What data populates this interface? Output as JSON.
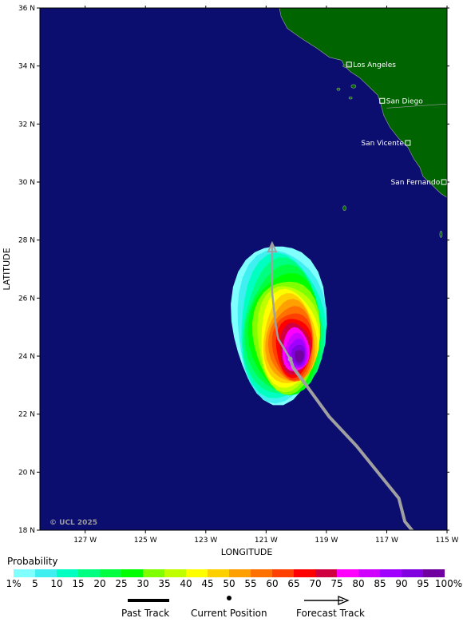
{
  "map": {
    "axes": {
      "xlabel": "LONGITUDE",
      "ylabel": "LATITUDE",
      "x_ticks": [
        "127 W",
        "125 W",
        "123 W",
        "121 W",
        "119 W",
        "117 W",
        "115 W"
      ],
      "y_ticks": [
        "18 N",
        "20 N",
        "22 N",
        "24 N",
        "26 N",
        "28 N",
        "30 N",
        "32 N",
        "34 N",
        "36 N"
      ],
      "lon_range": [
        -128.5,
        -115
      ],
      "lat_range": [
        18,
        36
      ]
    },
    "colors": {
      "ocean": "#0b0e6e",
      "land": "#006400",
      "track": "#a0a0a0",
      "city_marker": "#ffffff"
    },
    "cities": [
      {
        "name": "Los Angeles",
        "lon": -118.25,
        "lat": 34.05
      },
      {
        "name": "San Diego",
        "lon": -117.15,
        "lat": 32.8
      },
      {
        "name": "San Vicente",
        "lon": -116.3,
        "lat": 31.35
      },
      {
        "name": "San Fernando",
        "lon": -115.1,
        "lat": 30.0
      }
    ],
    "past_track": [
      {
        "lon": -116.0,
        "lat": 17.8
      },
      {
        "lon": -116.4,
        "lat": 18.3
      },
      {
        "lon": -116.6,
        "lat": 19.1
      },
      {
        "lon": -118.0,
        "lat": 20.9
      },
      {
        "lon": -118.9,
        "lat": 21.9
      },
      {
        "lon": -119.6,
        "lat": 22.9
      },
      {
        "lon": -120.1,
        "lat": 23.6
      },
      {
        "lon": -120.2,
        "lat": 23.9
      }
    ],
    "forecast_track": [
      {
        "lon": -120.2,
        "lat": 23.9
      },
      {
        "lon": -120.6,
        "lat": 24.6
      },
      {
        "lon": -120.7,
        "lat": 25.2
      },
      {
        "lon": -120.8,
        "lat": 26.2
      },
      {
        "lon": -120.8,
        "lat": 27.9
      }
    ],
    "current_position": {
      "lon": -120.2,
      "lat": 23.9
    },
    "probability_peak": {
      "lon": -119.9,
      "lat": 24.0
    },
    "copyright": "© UCL 2025"
  },
  "legend": {
    "title": "Probability",
    "labels": [
      "1%",
      "5",
      "10",
      "15",
      "20",
      "25",
      "30",
      "35",
      "40",
      "45",
      "50",
      "55",
      "60",
      "65",
      "70",
      "75",
      "80",
      "85",
      "90",
      "95",
      "100%"
    ],
    "colors": [
      "#80ffff",
      "#40f0f0",
      "#00ffc0",
      "#00ff80",
      "#00ff40",
      "#00ff00",
      "#80ff00",
      "#c0ff00",
      "#ffff00",
      "#ffd000",
      "#ffa000",
      "#ff7000",
      "#ff4000",
      "#ff0000",
      "#d00040",
      "#ff00ff",
      "#d000ff",
      "#a000ff",
      "#8000e0",
      "#7000a0"
    ],
    "key": {
      "past_track": "Past Track",
      "current_position": "Current Position",
      "forecast_track": "Forecast Track"
    }
  }
}
